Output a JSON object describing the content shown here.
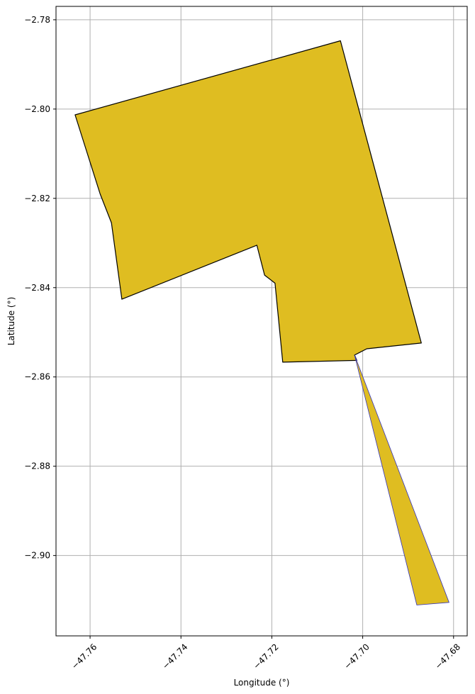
{
  "chart_data": {
    "type": "map",
    "xlabel": "Longitude (°)",
    "ylabel": "Latitude (°)",
    "xlim": [
      -47.7675,
      -47.677
    ],
    "ylim": [
      -2.918,
      -2.777
    ],
    "xticks": [
      {
        "value": -47.76,
        "label": "−47.76"
      },
      {
        "value": -47.74,
        "label": "−47.74"
      },
      {
        "value": -47.72,
        "label": "−47.72"
      },
      {
        "value": -47.7,
        "label": "−47.70"
      },
      {
        "value": -47.68,
        "label": "−47.68"
      }
    ],
    "yticks": [
      {
        "value": -2.78,
        "label": "−2.78"
      },
      {
        "value": -2.8,
        "label": "−2.80"
      },
      {
        "value": -2.82,
        "label": "−2.82"
      },
      {
        "value": -2.84,
        "label": "−2.84"
      },
      {
        "value": -2.86,
        "label": "−2.86"
      },
      {
        "value": -2.88,
        "label": "−2.88"
      },
      {
        "value": -2.9,
        "label": "−2.90"
      }
    ],
    "grid": true,
    "polygons": [
      {
        "fill": "#DFBD21",
        "stroke": "#000000",
        "coordinates": [
          [
            -47.7633,
            -2.8013
          ],
          [
            -47.7049,
            -2.7847
          ],
          [
            -47.6871,
            -2.8524
          ],
          [
            -47.6991,
            -2.8537
          ],
          [
            -47.7018,
            -2.8551
          ],
          [
            -47.7013,
            -2.8563
          ],
          [
            -47.7176,
            -2.8567
          ],
          [
            -47.7193,
            -2.839
          ],
          [
            -47.7216,
            -2.8372
          ],
          [
            -47.7233,
            -2.8305
          ],
          [
            -47.753,
            -2.8426
          ],
          [
            -47.7553,
            -2.8255
          ],
          [
            -47.7578,
            -2.819
          ]
        ]
      },
      {
        "fill": "#DFBD21",
        "stroke": "#3333bb",
        "coordinates": [
          [
            -47.7018,
            -2.8551
          ],
          [
            -47.681,
            -2.9105
          ],
          [
            -47.6881,
            -2.9111
          ]
        ]
      }
    ]
  }
}
